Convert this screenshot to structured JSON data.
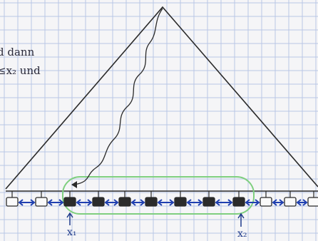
{
  "notes": [
    "d dann",
    "≤x₂ und"
  ],
  "markers": [
    "x₁",
    "x₂"
  ]
}
